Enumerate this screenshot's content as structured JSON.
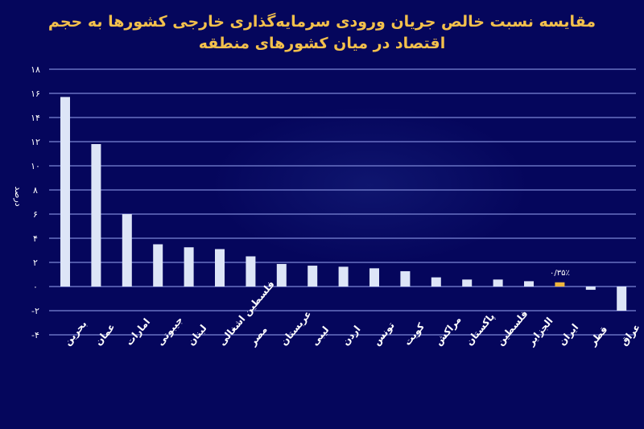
{
  "title": {
    "line1": "مقایسه نسبت خالص جریان ورودی سرمایه‌گذاری خارجی کشورها به حجم",
    "line2": "اقتصاد در میان کشورهای منطقه"
  },
  "colors": {
    "background": "#05065c",
    "bar": "#dde5f7",
    "highlight_bar": "#f0b63c",
    "title": "#f3c04c",
    "grid": "#7c86d6",
    "text": "#ffffff"
  },
  "highlight": {
    "category": "ایران",
    "label": "۰/۳۵٪"
  },
  "chart_data": {
    "type": "bar",
    "title": "مقایسه نسبت خالص جریان ورودی سرمایه‌گذاری خارجی کشورها به حجم اقتصاد در میان کشورهای منطقه",
    "xlabel": "",
    "ylabel": "درصد",
    "ylim": [
      -4,
      18
    ],
    "yticks": [
      18,
      16,
      14,
      12,
      10,
      8,
      6,
      4,
      2,
      0,
      -2,
      -4
    ],
    "ytick_labels": [
      "۱۸",
      "۱۶",
      "۱۴",
      "۱۲",
      "۱۰",
      "۸",
      "۶",
      "۴",
      "۲",
      "۰",
      "-۲",
      "-۴"
    ],
    "grid": true,
    "legend": null,
    "categories": [
      "بحرین",
      "عمان",
      "امارات",
      "جیبوتی",
      "لبنان",
      "فلسطین اشغالی",
      "مصر",
      "عربستان",
      "لیبی",
      "اردن",
      "تونس",
      "کویت",
      "مراکش",
      "پاکستان",
      "فلسطین",
      "الجزایر",
      "ایران",
      "قطر",
      "عراق"
    ],
    "values": [
      15.7,
      11.8,
      6.0,
      3.5,
      3.25,
      3.1,
      2.5,
      1.87,
      1.73,
      1.64,
      1.51,
      1.27,
      0.76,
      0.58,
      0.58,
      0.44,
      0.35,
      -0.27,
      -2.0
    ],
    "annotations": [
      {
        "category": "ایران",
        "text": "۰/۳۵٪"
      }
    ]
  }
}
